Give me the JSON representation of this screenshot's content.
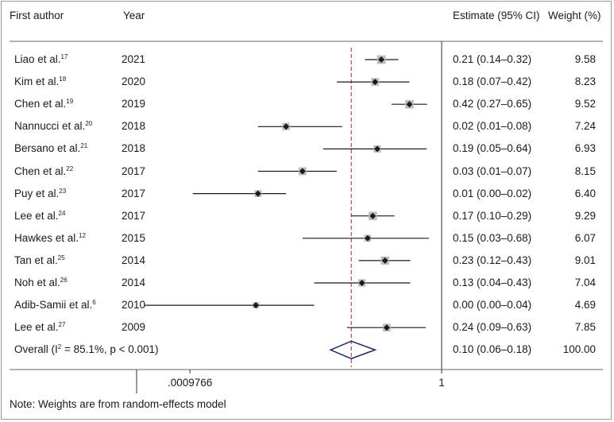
{
  "headers": {
    "author": "First author",
    "year": "Year",
    "estimate": "Estimate (95% CI)",
    "weight": "Weight (%)"
  },
  "note": "Note: Weights are from random-effects model",
  "colors": {
    "ref_line": "#a0524f",
    "diamond": "#1f2f5e",
    "marker": "#1a1a1a",
    "box": "#bdbdbd"
  },
  "chart_data": {
    "type": "forest",
    "x_scale": "log",
    "x_ticks": [
      {
        "value": 0.0009766,
        "label": ".0009766"
      },
      {
        "value": 1,
        "label": "1"
      }
    ],
    "reference_line": 0.1,
    "studies": [
      {
        "author": "Liao et al.",
        "ref": "17",
        "year": "2021",
        "est": 0.21,
        "lo": 0.14,
        "hi": 0.32,
        "ci_text": "0.21 (0.14–0.32)",
        "weight": "9.58"
      },
      {
        "author": "Kim et al.",
        "ref": "18",
        "year": "2020",
        "est": 0.18,
        "lo": 0.07,
        "hi": 0.42,
        "ci_text": "0.18 (0.07–0.42)",
        "weight": "8.23"
      },
      {
        "author": "Chen et al.",
        "ref": "19",
        "year": "2019",
        "est": 0.42,
        "lo": 0.27,
        "hi": 0.65,
        "ci_text": "0.42 (0.27–0.65)",
        "weight": "9.52"
      },
      {
        "author": "Nannucci et al.",
        "ref": "20",
        "year": "2018",
        "est": 0.02,
        "lo": 0.01,
        "hi": 0.08,
        "ci_text": "0.02 (0.01–0.08)",
        "weight": "7.24"
      },
      {
        "author": "Bersano et al.",
        "ref": "21",
        "year": "2018",
        "est": 0.19,
        "lo": 0.05,
        "hi": 0.64,
        "ci_text": "0.19 (0.05–0.64)",
        "weight": "6.93"
      },
      {
        "author": "Chen et al.",
        "ref": "22",
        "year": "2017",
        "est": 0.03,
        "lo": 0.01,
        "hi": 0.07,
        "ci_text": "0.03 (0.01–0.07)",
        "weight": "8.15"
      },
      {
        "author": "Puy et al.",
        "ref": "23",
        "year": "2017",
        "est": 0.01,
        "lo": 0.002,
        "hi": 0.02,
        "ci_text": "0.01 (0.00–0.02)",
        "weight": "6.40"
      },
      {
        "author": "Lee et al.",
        "ref": "24",
        "year": "2017",
        "est": 0.17,
        "lo": 0.1,
        "hi": 0.29,
        "ci_text": "0.17 (0.10–0.29)",
        "weight": "9.29"
      },
      {
        "author": "Hawkes et al.",
        "ref": "12",
        "year": "2015",
        "est": 0.15,
        "lo": 0.03,
        "hi": 0.68,
        "ci_text": "0.15 (0.03–0.68)",
        "weight": "6.07"
      },
      {
        "author": "Tan et al.",
        "ref": "25",
        "year": "2014",
        "est": 0.23,
        "lo": 0.12,
        "hi": 0.43,
        "ci_text": "0.23 (0.12–0.43)",
        "weight": "9.01"
      },
      {
        "author": "Noh et al.",
        "ref": "26",
        "year": "2014",
        "est": 0.13,
        "lo": 0.04,
        "hi": 0.43,
        "ci_text": "0.13 (0.04–0.43)",
        "weight": "7.04"
      },
      {
        "author": "Adib-Samii et al.",
        "ref": "6",
        "year": "2010",
        "est": 0.0095,
        "lo": 0.0006,
        "hi": 0.04,
        "ci_text": "0.00 (0.00–0.04)",
        "weight": "4.69"
      },
      {
        "author": "Lee et al.",
        "ref": "27",
        "year": "2009",
        "est": 0.24,
        "lo": 0.09,
        "hi": 0.63,
        "ci_text": "0.24 (0.09–0.63)",
        "weight": "7.85"
      }
    ],
    "overall": {
      "label_prefix": "Overall (I",
      "label_sup": "2",
      "label_suffix": " = 85.1%, p < 0.001)",
      "est": 0.1,
      "lo": 0.06,
      "hi": 0.18,
      "ci_text": "0.10 (0.06–0.18)",
      "weight": "100.00"
    }
  }
}
